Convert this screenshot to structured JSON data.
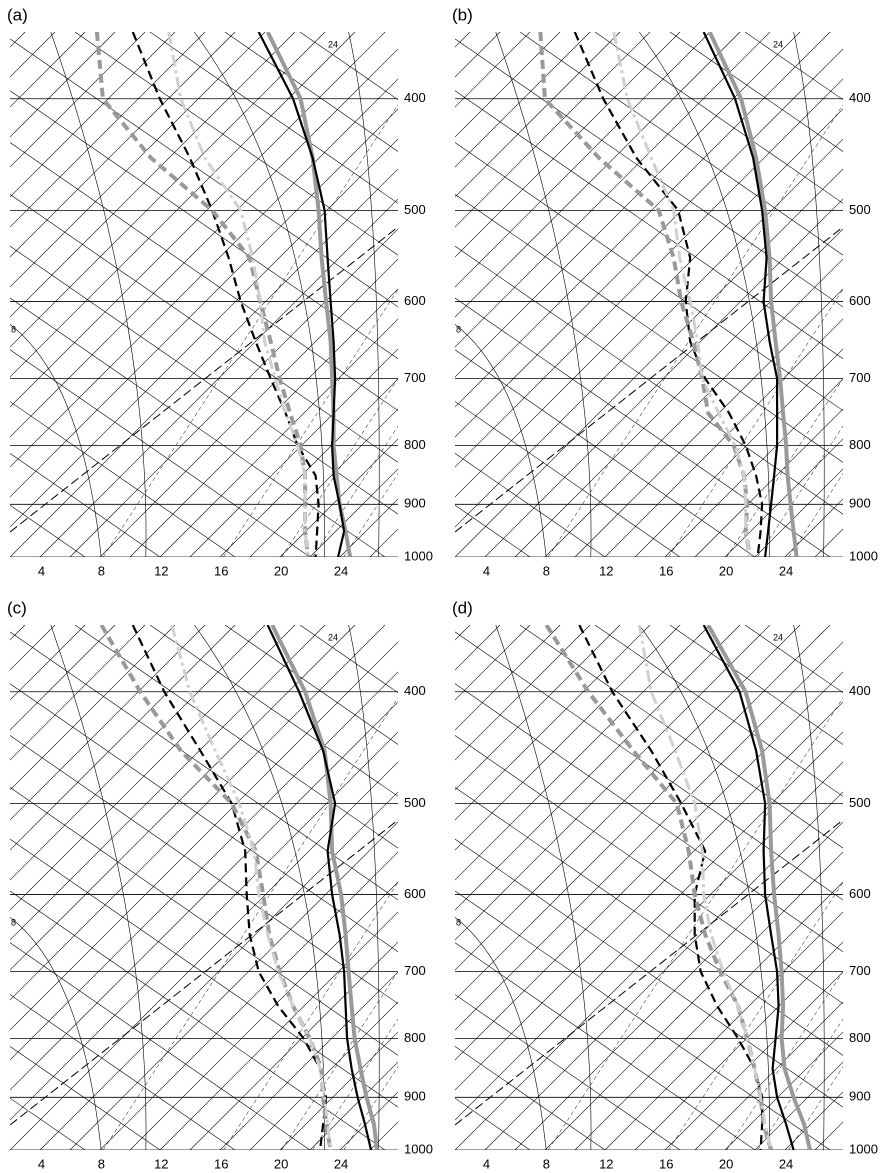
{
  "chart_data": [
    {
      "type": "skewt",
      "label": "(a)",
      "xlim": [
        1.9,
        27.8
      ],
      "ylim": [
        1000,
        350
      ],
      "xticks": [
        4,
        8,
        12,
        16,
        20,
        24
      ],
      "yticks": [
        400,
        500,
        600,
        700,
        800,
        900,
        1000
      ],
      "annotations": [
        "24",
        "8"
      ],
      "y": [
        350,
        400,
        450,
        500,
        550,
        600,
        650,
        700,
        750,
        800,
        850,
        900,
        950,
        1000
      ],
      "series": [
        {
          "color": "#9a9a9a",
          "style": "solid",
          "line_width": 4,
          "values": [
            19.1,
            21.3,
            22.1,
            22.5,
            22.7,
            23.0,
            23.3,
            23.4,
            23.5,
            23.5,
            23.7,
            23.9,
            24.3,
            24.6
          ]
        },
        {
          "color": "#000000",
          "style": "solid",
          "line_width": 2.2,
          "values": [
            18.5,
            20.8,
            22.1,
            22.9,
            23.1,
            23.3,
            23.5,
            23.6,
            23.5,
            23.4,
            23.5,
            23.9,
            24.2,
            23.8
          ]
        },
        {
          "color": "#000000",
          "style": "dashed",
          "line_width": 2.2,
          "values": [
            10.1,
            11.9,
            13.9,
            15.4,
            16.5,
            17.3,
            18.3,
            19.3,
            20.3,
            21.1,
            22.3,
            22.5,
            22.4,
            22.3
          ]
        },
        {
          "color": "#999999",
          "style": "dashed",
          "line_width": 4,
          "values": [
            7.7,
            8.1,
            11.3,
            15.4,
            17.9,
            18.6,
            19.3,
            19.9,
            20.6,
            21.3,
            21.6,
            21.6,
            21.6,
            21.8
          ]
        },
        {
          "color": "#d0d0d0",
          "style": "dashdot",
          "line_width": 3,
          "values": [
            12.5,
            13.3,
            14.9,
            17.3,
            18.1,
            18.6,
            18.9,
            19.6,
            20.3,
            21.1,
            21.6,
            21.6,
            21.6,
            21.8
          ]
        }
      ]
    },
    {
      "type": "skewt",
      "label": "(b)",
      "xlim": [
        1.9,
        27.8
      ],
      "ylim": [
        1000,
        350
      ],
      "xticks": [
        4,
        8,
        12,
        16,
        20,
        24
      ],
      "yticks": [
        400,
        500,
        600,
        700,
        800,
        900,
        1000
      ],
      "annotations": [
        "24",
        "8"
      ],
      "y": [
        350,
        400,
        450,
        500,
        550,
        600,
        650,
        700,
        750,
        800,
        850,
        900,
        950,
        1000
      ],
      "series": [
        {
          "color": "#9a9a9a",
          "style": "solid",
          "line_width": 4,
          "values": [
            18.9,
            21.0,
            22.0,
            22.6,
            22.9,
            23.0,
            23.3,
            23.6,
            23.8,
            24.0,
            24.1,
            24.3,
            24.5,
            24.7
          ]
        },
        {
          "color": "#000000",
          "style": "solid",
          "line_width": 2.2,
          "values": [
            18.5,
            20.6,
            21.8,
            22.4,
            22.7,
            22.5,
            22.9,
            23.4,
            23.4,
            23.4,
            23.2,
            23.0,
            22.8,
            22.6
          ]
        },
        {
          "color": "#000000",
          "style": "dashed",
          "line_width": 2.2,
          "values": [
            9.9,
            11.8,
            14.0,
            16.8,
            17.6,
            17.3,
            17.6,
            18.6,
            20.2,
            21.3,
            22.0,
            22.4,
            22.3,
            22.1
          ]
        },
        {
          "color": "#999999",
          "style": "dashed",
          "line_width": 4,
          "values": [
            7.6,
            7.9,
            11.5,
            15.5,
            16.5,
            17.0,
            17.8,
            18.4,
            18.8,
            20.5,
            21.2,
            21.4,
            21.3,
            21.6
          ]
        },
        {
          "color": "#d0d0d0",
          "style": "dashdot",
          "line_width": 3,
          "values": [
            12.5,
            13.4,
            15.0,
            16.5,
            16.9,
            17.6,
            18.1,
            18.4,
            19.5,
            20.6,
            21.2,
            21.3,
            21.3,
            21.6
          ]
        }
      ]
    },
    {
      "type": "skewt",
      "label": "(c)",
      "xlim": [
        1.9,
        27.8
      ],
      "ylim": [
        1000,
        350
      ],
      "xticks": [
        4,
        8,
        12,
        16,
        20,
        24
      ],
      "yticks": [
        400,
        500,
        600,
        700,
        800,
        900,
        1000
      ],
      "annotations": [
        "24",
        "8"
      ],
      "y": [
        350,
        400,
        450,
        500,
        550,
        600,
        650,
        700,
        750,
        800,
        850,
        900,
        950,
        1000
      ],
      "series": [
        {
          "color": "#9a9a9a",
          "style": "solid",
          "line_width": 4,
          "values": [
            19.4,
            21.6,
            22.9,
            23.3,
            23.4,
            24.0,
            24.3,
            24.5,
            24.7,
            24.9,
            25.3,
            25.7,
            26.2,
            26.4
          ]
        },
        {
          "color": "#000000",
          "style": "solid",
          "line_width": 2.2,
          "values": [
            19.1,
            21.2,
            22.8,
            23.6,
            23.1,
            23.4,
            23.9,
            24.2,
            24.3,
            24.4,
            24.7,
            25.1,
            25.6,
            26.0
          ]
        },
        {
          "color": "#000000",
          "style": "dashed",
          "line_width": 2.2,
          "values": [
            10.1,
            12.2,
            14.6,
            16.7,
            17.6,
            17.7,
            17.9,
            18.5,
            19.8,
            21.5,
            22.6,
            23.0,
            22.8,
            22.6
          ]
        },
        {
          "color": "#999999",
          "style": "dashed",
          "line_width": 4,
          "values": [
            8.0,
            10.6,
            13.3,
            16.7,
            18.3,
            18.8,
            19.2,
            19.9,
            20.8,
            21.9,
            22.7,
            22.8,
            23.0,
            23.3
          ]
        },
        {
          "color": "#d0d0d0",
          "style": "dashdot",
          "line_width": 3,
          "values": [
            12.7,
            13.9,
            15.6,
            17.2,
            18.2,
            18.5,
            19.1,
            19.8,
            20.8,
            21.9,
            22.6,
            22.9,
            23.1,
            23.3
          ]
        }
      ]
    },
    {
      "type": "skewt",
      "label": "(d)",
      "xlim": [
        1.9,
        27.8
      ],
      "ylim": [
        1000,
        350
      ],
      "xticks": [
        4,
        8,
        12,
        16,
        20,
        24
      ],
      "yticks": [
        400,
        500,
        600,
        700,
        800,
        900,
        1000
      ],
      "annotations": [
        "24",
        "8"
      ],
      "y": [
        350,
        400,
        450,
        500,
        550,
        600,
        650,
        700,
        750,
        800,
        850,
        900,
        950,
        1000
      ],
      "series": [
        {
          "color": "#9a9a9a",
          "style": "solid",
          "line_width": 4,
          "values": [
            18.8,
            21.3,
            22.4,
            22.9,
            23.0,
            23.2,
            23.5,
            23.7,
            23.8,
            23.7,
            23.9,
            24.5,
            25.2,
            25.6
          ]
        },
        {
          "color": "#000000",
          "style": "solid",
          "line_width": 2.2,
          "values": [
            18.5,
            20.9,
            22.0,
            22.6,
            22.5,
            22.6,
            23.0,
            23.4,
            23.5,
            23.3,
            23.1,
            23.4,
            24.0,
            24.5
          ]
        },
        {
          "color": "#000000",
          "style": "dashed",
          "line_width": 2.2,
          "values": [
            10.2,
            12.4,
            15.0,
            17.0,
            18.6,
            17.9,
            17.9,
            18.3,
            19.4,
            20.8,
            21.9,
            22.4,
            22.4,
            22.3
          ]
        },
        {
          "color": "#999999",
          "style": "dashed",
          "line_width": 4,
          "values": [
            8.0,
            10.8,
            13.8,
            16.7,
            17.5,
            17.9,
            18.6,
            19.6,
            20.8,
            21.4,
            21.9,
            22.3,
            22.5,
            23.0
          ]
        },
        {
          "color": "#d0d0d0",
          "style": "dashdot",
          "line_width": 3,
          "values": [
            14.2,
            15.0,
            16.6,
            17.9,
            18.4,
            18.5,
            19.0,
            19.8,
            20.8,
            21.4,
            21.9,
            22.3,
            22.6,
            23.0
          ]
        }
      ]
    }
  ]
}
